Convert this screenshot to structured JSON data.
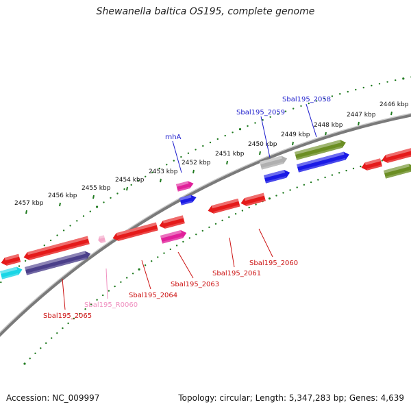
{
  "title": "Shewanella baltica OS195, complete genome",
  "footer": {
    "accession": "Accession: NC_009997",
    "topology": "Topology: circular; Length: 5,347,283 bp; Genes: 4,639"
  },
  "ticks": [
    "2457 kbp",
    "2456 kbp",
    "2455 kbp",
    "2454 kbp",
    "2453 kbp",
    "2452 kbp",
    "2451 kbp",
    "2450 kbp",
    "2449 kbp",
    "2448 kbp",
    "2447 kbp",
    "2446 kbp"
  ],
  "labels": [
    {
      "text": "rnhA",
      "color": "#1a1acc"
    },
    {
      "text": "Sbal195_2059",
      "color": "#1a1acc"
    },
    {
      "text": "Sbal195_2058",
      "color": "#1a1acc"
    },
    {
      "text": "Sbal195_2065",
      "color": "#cc1111"
    },
    {
      "text": "Sbal195_R0060",
      "color": "#f090c0"
    },
    {
      "text": "Sbal195_2064",
      "color": "#cc1111"
    },
    {
      "text": "Sbal195_2063",
      "color": "#cc1111"
    },
    {
      "text": "Sbal195_2061",
      "color": "#cc1111"
    },
    {
      "text": "Sbal195_2060",
      "color": "#cc1111"
    }
  ],
  "colors": {
    "backbone": "#7a7a7a",
    "tick_dots": "#1f7a1f",
    "gene_red": "#e51a1a",
    "gene_blue": "#1a1ae6",
    "gene_olive": "#6b8e23",
    "gene_purple": "#4b3f8a",
    "gene_cyan": "#19d6e6",
    "gene_magenta": "#e0209a",
    "gene_gray": "#b0b0b0",
    "gene_pink": "#f4a6c8"
  }
}
